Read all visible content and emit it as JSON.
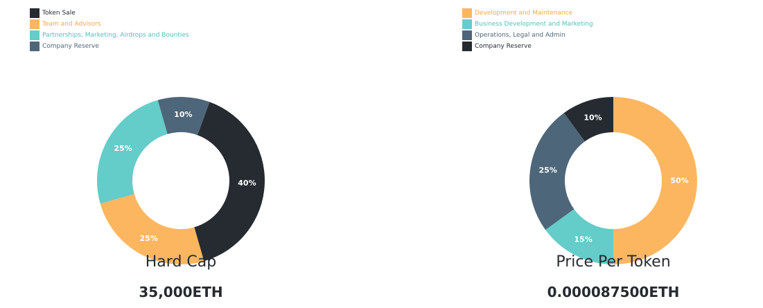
{
  "chart_data": [
    {
      "type": "pie",
      "donut": true,
      "categories": [
        "Token Sale",
        "Team and Advisors",
        "Partnerships, Marketing, Airdrops and Bounties",
        "Company Reserve"
      ],
      "values": [
        40,
        25,
        25,
        10
      ],
      "colors": [
        "#262b31",
        "#fcb660",
        "#64ccc9",
        "#4e6679"
      ],
      "label_colors": [
        "#262b31",
        "#f5a64a",
        "#4cbfbd",
        "#4e6679"
      ],
      "data_labels": [
        "40%",
        "25%",
        "25%",
        "10%"
      ],
      "start_angle_deg": 20,
      "legend_position": "top-left",
      "caption_title": "Hard Cap",
      "caption_value": "35,000ETH"
    },
    {
      "type": "pie",
      "donut": true,
      "categories": [
        "Development and Maintenance",
        "Business Development and Marketing",
        "Operations, Legal and Admin",
        "Company Reserve"
      ],
      "values": [
        50,
        15,
        25,
        10
      ],
      "colors": [
        "#fcb660",
        "#64ccc9",
        "#4e6679",
        "#262b31"
      ],
      "label_colors": [
        "#f5a64a",
        "#4cbfbd",
        "#4e6679",
        "#262b31"
      ],
      "data_labels": [
        "50%",
        "15%",
        "25%",
        "10%"
      ],
      "start_angle_deg": 0,
      "legend_position": "top-left",
      "caption_title": "Price Per Token",
      "caption_value": "0.000087500ETH"
    }
  ]
}
